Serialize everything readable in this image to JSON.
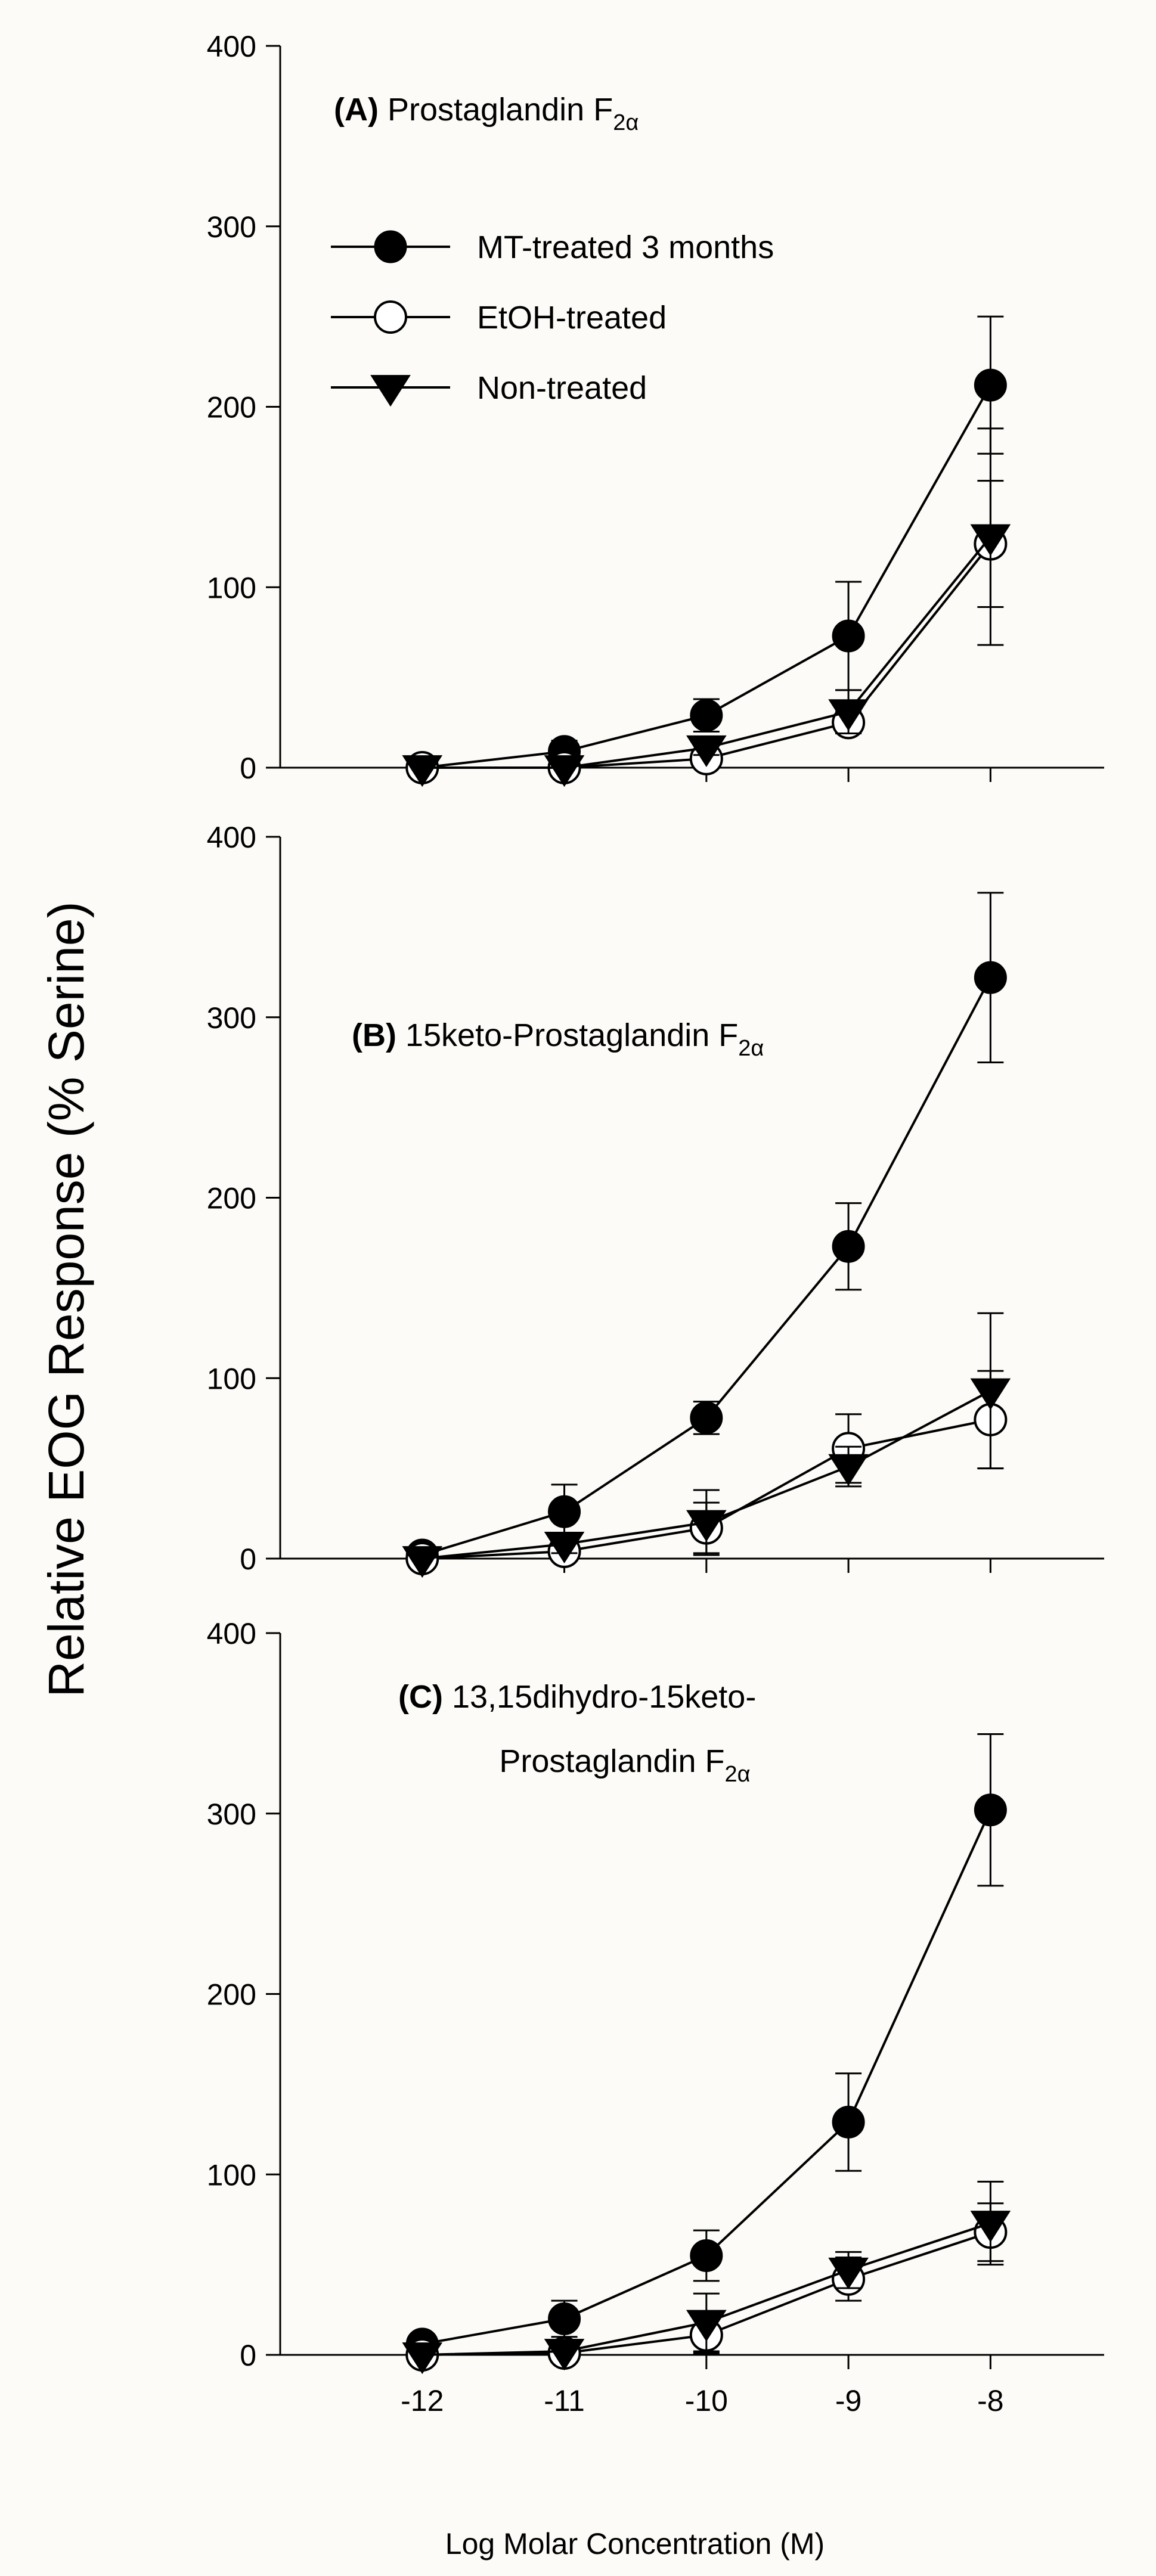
{
  "chart_data": {
    "shared": {
      "ylabel": "Relative EOG Response (% Serine)",
      "xlabel": "Log Molar Concentration (M)",
      "x_values": [
        -12,
        -11,
        -10,
        -9,
        -8
      ],
      "x_tick_labels": [
        "-12",
        "-11",
        "-10",
        "-9",
        "-8"
      ],
      "xlim": [
        -13,
        -7.2
      ],
      "y_tick_labels": [
        "0",
        "100",
        "200",
        "300",
        "400"
      ],
      "ylim": [
        0,
        400
      ]
    },
    "legend": [
      {
        "label": "MT-treated 3 months",
        "marker": "filled-circle"
      },
      {
        "label": "EtOH-treated",
        "marker": "open-circle"
      },
      {
        "label": "Non-treated",
        "marker": "filled-triangle-down"
      }
    ],
    "panels": [
      {
        "type": "line",
        "letter": "(A)",
        "title_lines": [
          [
            "Prostaglandin F",
            "2α"
          ]
        ],
        "series": [
          {
            "name": "MT-treated 3 months",
            "values": [
              0,
              9,
              29,
              73,
              212
            ],
            "errors": [
              3,
              6,
              9,
              30,
              38
            ]
          },
          {
            "name": "EtOH-treated",
            "values": [
              0,
              0,
              5,
              25,
              124
            ],
            "errors": [
              2,
              2,
              4,
              6,
              35
            ]
          },
          {
            "name": "Non-treated",
            "values": [
              0,
              0,
              11,
              31,
              128
            ],
            "errors": [
              2,
              2,
              4,
              12,
              60
            ]
          }
        ]
      },
      {
        "type": "line",
        "letter": "(B)",
        "title_lines": [
          [
            "15keto-Prostaglandin F",
            "2α"
          ]
        ],
        "series": [
          {
            "name": "MT-treated 3 months",
            "values": [
              2,
              26,
              78,
              173,
              322
            ],
            "errors": [
              3,
              15,
              9,
              24,
              47
            ]
          },
          {
            "name": "EtOH-treated",
            "values": [
              0,
              4,
              17,
              61,
              77
            ],
            "errors": [
              2,
              4,
              14,
              19,
              27
            ]
          },
          {
            "name": "Non-treated",
            "values": [
              0,
              8,
              20,
              51,
              93
            ],
            "errors": [
              2,
              5,
              18,
              11,
              43
            ]
          }
        ]
      },
      {
        "type": "line",
        "letter": "(C)",
        "title_lines": [
          [
            "13,15dihydro-15keto-",
            ""
          ],
          [
            "Prostaglandin F",
            "2α"
          ]
        ],
        "series": [
          {
            "name": "MT-treated 3 months",
            "values": [
              6,
              20,
              55,
              129,
              302
            ],
            "errors": [
              5,
              10,
              14,
              27,
              42
            ]
          },
          {
            "name": "EtOH-treated",
            "values": [
              0,
              1,
              11,
              42,
              68
            ],
            "errors": [
              2,
              3,
              10,
              12,
              16
            ]
          },
          {
            "name": "Non-treated",
            "values": [
              0,
              2,
              18,
              47,
              73
            ],
            "errors": [
              2,
              3,
              16,
              10,
              23
            ]
          }
        ]
      }
    ]
  }
}
